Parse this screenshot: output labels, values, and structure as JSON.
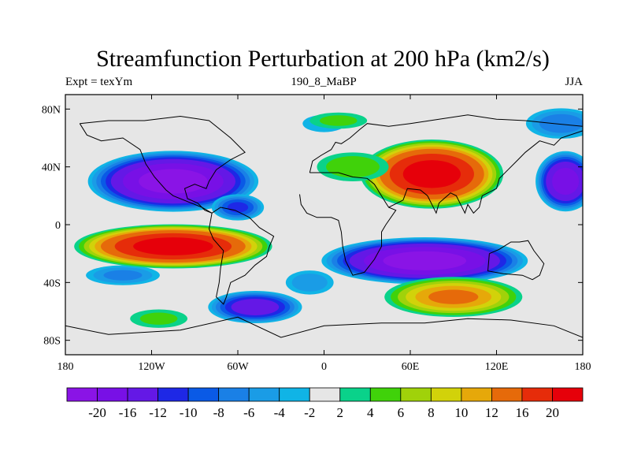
{
  "chart_data": {
    "type": "heatmap",
    "title": "Streamfunction Perturbation at 200 hPa (km2/s)",
    "left_string": "Expt = texYm",
    "center_string": "190_8_MaBP",
    "right_string": "JJA",
    "x_ticks": [
      "180",
      "120W",
      "60W",
      "0",
      "60E",
      "120E",
      "180"
    ],
    "y_ticks": [
      "80N",
      "40N",
      "0",
      "40S",
      "80S"
    ],
    "xlim": [
      -180,
      180
    ],
    "ylim": [
      -90,
      90
    ],
    "colorbar": {
      "levels": [
        "-20",
        "-16",
        "-12",
        "-10",
        "-8",
        "-6",
        "-4",
        "-2",
        "2",
        "4",
        "6",
        "8",
        "10",
        "12",
        "16",
        "20"
      ],
      "colors": [
        "#8a14e6",
        "#7810e6",
        "#6418e6",
        "#1e28e6",
        "#0a5ae6",
        "#1a80e6",
        "#1a9ce6",
        "#10b4e6",
        "#e6e6e6",
        "#0ad28a",
        "#40d20a",
        "#a0d20a",
        "#d2d20a",
        "#e6a80a",
        "#e66a0a",
        "#e62c0a",
        "#e6000a"
      ]
    },
    "features": [
      {
        "lon": -105,
        "lat": 30,
        "value": -22,
        "rx": 62,
        "ry": 22
      },
      {
        "lon": -60,
        "lat": 12,
        "value": -10,
        "rx": 20,
        "ry": 10
      },
      {
        "lon": 168,
        "lat": 30,
        "value": -18,
        "rx": 22,
        "ry": 22
      },
      {
        "lon": 165,
        "lat": 70,
        "value": -7,
        "rx": 28,
        "ry": 12
      },
      {
        "lon": -140,
        "lat": -35,
        "value": -6,
        "rx": 30,
        "ry": 8
      },
      {
        "lon": 70,
        "lat": -25,
        "value": -22,
        "rx": 75,
        "ry": 17
      },
      {
        "lon": -48,
        "lat": -57,
        "value": -14,
        "rx": 35,
        "ry": 12
      },
      {
        "lon": -10,
        "lat": -40,
        "value": -5,
        "rx": 20,
        "ry": 10
      },
      {
        "lon": 0,
        "lat": 70,
        "value": -3,
        "rx": 20,
        "ry": 8
      },
      {
        "lon": -105,
        "lat": -15,
        "value": 22,
        "rx": 72,
        "ry": 16
      },
      {
        "lon": 75,
        "lat": 35,
        "value": 22,
        "rx": 52,
        "ry": 25
      },
      {
        "lon": 90,
        "lat": -50,
        "value": 12,
        "rx": 52,
        "ry": 15
      },
      {
        "lon": 20,
        "lat": 40,
        "value": 5,
        "rx": 30,
        "ry": 12
      },
      {
        "lon": 10,
        "lat": 72,
        "value": 4,
        "rx": 25,
        "ry": 7
      },
      {
        "lon": -115,
        "lat": -65,
        "value": 4,
        "rx": 25,
        "ry": 8
      }
    ]
  }
}
